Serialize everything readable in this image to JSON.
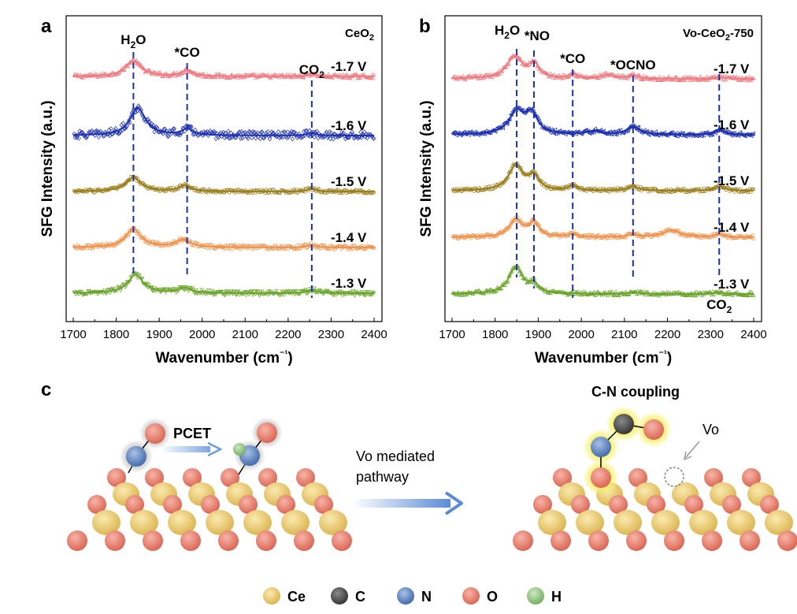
{
  "panels": {
    "a": {
      "label": "a"
    },
    "b": {
      "label": "b"
    },
    "c": {
      "label": "c"
    }
  },
  "chart_data": [
    {
      "type": "line",
      "panel": "a",
      "title": "CeO₂",
      "xlabel": "Wavenumber (cm⁻¹)",
      "ylabel": "SFG Intensity (a.u.)",
      "xlim": [
        1700,
        2400
      ],
      "xticks": [
        1700,
        1800,
        1900,
        2000,
        2100,
        2200,
        2300,
        2400
      ],
      "grid": false,
      "markers": [
        {
          "name": "H₂O",
          "x": 1840
        },
        {
          "name": "*CO",
          "x": 1965
        },
        {
          "name": "CO₂",
          "x": 2255
        }
      ],
      "series": [
        {
          "name": "-1.7 V",
          "color": "#f07a80",
          "marker": "triangle",
          "base": 0.0,
          "peaks": [
            [
              1840,
              0.9,
              22
            ],
            [
              1965,
              0.35,
              16
            ],
            [
              2255,
              0.15,
              12
            ]
          ],
          "noise": 0.12
        },
        {
          "name": "-1.6 V",
          "color": "#1c2fb0",
          "marker": "diamond",
          "base": 0.0,
          "peaks": [
            [
              1850,
              1.6,
              22
            ],
            [
              1965,
              0.35,
              16
            ],
            [
              2255,
              0.15,
              12
            ]
          ],
          "noise": 0.22
        },
        {
          "name": "-1.5 V",
          "color": "#9a7d18",
          "marker": "circle",
          "base": 0.0,
          "peaks": [
            [
              1840,
              0.8,
              22
            ],
            [
              1960,
              0.35,
              16
            ],
            [
              2255,
              0.15,
              12
            ]
          ],
          "noise": 0.1
        },
        {
          "name": "-1.4 V",
          "color": "#f29048",
          "marker": "circle",
          "base": 0.0,
          "peaks": [
            [
              1840,
              1.05,
              22
            ],
            [
              1955,
              0.45,
              20
            ],
            [
              2255,
              0.15,
              12
            ]
          ],
          "noise": 0.12
        },
        {
          "name": "-1.3 V",
          "color": "#6aa52a",
          "marker": "triangle-down",
          "base": 0.0,
          "peaks": [
            [
              1845,
              1.05,
              22
            ],
            [
              1960,
              0.3,
              16
            ],
            [
              2255,
              0.2,
              12
            ]
          ],
          "noise": 0.14
        }
      ]
    },
    {
      "type": "line",
      "panel": "b",
      "title": "Vo-CeO₂-750",
      "xlabel": "Wavenumber (cm⁻¹)",
      "ylabel": "SFG Intensity (a.u.)",
      "xlim": [
        1700,
        2400
      ],
      "xticks": [
        1700,
        1800,
        1900,
        2000,
        2100,
        2200,
        2300,
        2400
      ],
      "grid": false,
      "markers": [
        {
          "name": "H₂O",
          "x": 1850
        },
        {
          "name": "*NO",
          "x": 1890
        },
        {
          "name": "*CO",
          "x": 1980
        },
        {
          "name": "*OCNO",
          "x": 2120
        },
        {
          "name": "CO₂",
          "x": 2320
        }
      ],
      "series": [
        {
          "name": "-1.7 V",
          "color": "#f07a80",
          "marker": "triangle",
          "base": 0.0,
          "peaks": [
            [
              1845,
              1.25,
              22
            ],
            [
              1890,
              0.8,
              14
            ],
            [
              1980,
              0.3,
              10
            ],
            [
              2060,
              0.2,
              18
            ],
            [
              2120,
              0.2,
              12
            ],
            [
              2320,
              0.1,
              10
            ]
          ],
          "noise": 0.12
        },
        {
          "name": "-1.6 V",
          "color": "#1c2fb0",
          "marker": "triangle-left",
          "base": 0.0,
          "peaks": [
            [
              1850,
              1.3,
              22
            ],
            [
              1885,
              1.1,
              16
            ],
            [
              2030,
              0.2,
              18
            ],
            [
              2120,
              0.45,
              18
            ],
            [
              2320,
              0.3,
              12
            ]
          ],
          "noise": 0.12
        },
        {
          "name": "-1.5 V",
          "color": "#9a7d18",
          "marker": "circle",
          "base": 0.0,
          "peaks": [
            [
              1848,
              1.45,
              20
            ],
            [
              1890,
              0.8,
              14
            ],
            [
              1980,
              0.3,
              10
            ],
            [
              2120,
              0.25,
              14
            ],
            [
              2320,
              0.25,
              14
            ]
          ],
          "noise": 0.1
        },
        {
          "name": "-1.4 V",
          "color": "#f29048",
          "marker": "circle",
          "base": 0.0,
          "peaks": [
            [
              1848,
              1.0,
              18
            ],
            [
              1890,
              0.8,
              14
            ],
            [
              1980,
              0.2,
              10
            ],
            [
              2120,
              0.15,
              14
            ],
            [
              2210,
              0.4,
              24
            ],
            [
              2320,
              0.15,
              12
            ]
          ],
          "noise": 0.1
        },
        {
          "name": "-1.3 V",
          "color": "#6aa52a",
          "marker": "triangle",
          "base": 0.0,
          "peaks": [
            [
              1848,
              1.55,
              20
            ],
            [
              1890,
              0.5,
              12
            ],
            [
              2120,
              0.1,
              14
            ],
            [
              2320,
              0.1,
              10
            ]
          ],
          "noise": 0.12
        }
      ]
    }
  ],
  "scheme": {
    "pcet_label": "PCET",
    "mid_line1": "Vo mediated",
    "mid_line2": "pathway",
    "coupling_label": "C-N coupling",
    "vo_label": "Vo",
    "legend": [
      {
        "label": "Ce",
        "color": "#e9c96a"
      },
      {
        "label": "C",
        "color": "#4e4e4e"
      },
      {
        "label": "N",
        "color": "#5b84c2"
      },
      {
        "label": "O",
        "color": "#e87f6e"
      },
      {
        "label": "H",
        "color": "#8fc27d"
      }
    ]
  }
}
